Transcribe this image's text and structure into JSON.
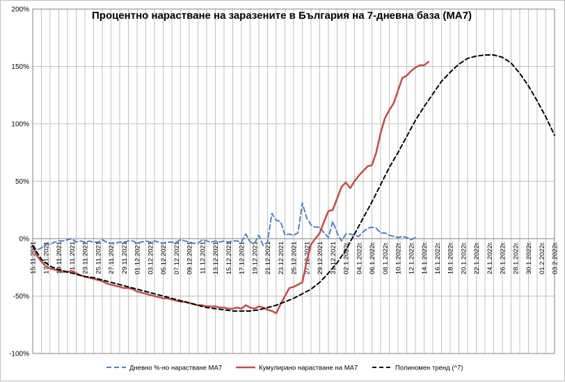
{
  "chart_data": {
    "type": "line",
    "title": "Процентно нарастване  на заразените в България на 7-дневна база (МА7)",
    "xlabel": "",
    "ylabel": "",
    "ylim": [
      -100,
      200
    ],
    "y_ticks": [
      "-100%",
      "-50%",
      "0%",
      "50%",
      "100%",
      "150%",
      "200%"
    ],
    "y_tick_values": [
      -100,
      -50,
      0,
      50,
      100,
      150,
      200
    ],
    "grid": true,
    "legend_position": "bottom",
    "x_tick_labels": [
      "15.11.2021",
      "17.11.2021",
      "19.11.2021",
      "21.11.2021",
      "23.11.2021",
      "25.11.2021",
      "27.11.2021",
      "29.11.2021",
      "01.12.2021",
      "03.12.2021",
      "05.12.2021",
      "07.12.2021",
      "09.12.2021",
      "11.12.2021",
      "13.12.2021",
      "15.12.2021",
      "17.12.2021",
      "19.12.2021",
      "21.12.2021",
      "23.12.2021",
      "25.12.2021",
      "27.12.2021",
      "29.12.2021",
      "31.12.2021",
      "02.1.2022г.",
      "04.1.2022г.",
      "06.1.2022г.",
      "08.1.2022г.",
      "10.1.2022г.",
      "12.1.2022г.",
      "14.1.2022г.",
      "16.1.2022г.",
      "18.1.2022г.",
      "20.1.2022г.",
      "22.1.2022г.",
      "24.1.2022г.",
      "26.1.2022г.",
      "28.1.2022г.",
      "30.1.2022г.",
      "01.2.2022г.",
      "03.2.2022г."
    ],
    "series": [
      {
        "name": "Дневно %-но нарастване МА7",
        "color": "#4f81bd",
        "style": "dashed",
        "values": [
          -6,
          -10,
          -8,
          -5,
          -5,
          -3,
          -2,
          -2,
          -1,
          0,
          -3,
          -2,
          -3,
          -2,
          -3,
          -3,
          -1,
          -3,
          -4,
          -4,
          -3,
          -3,
          -2,
          -2,
          -4,
          -3,
          -2,
          -3,
          -2,
          -3,
          -4,
          -3,
          -3,
          -3,
          -1,
          -2,
          -3,
          -4,
          -4,
          -1,
          -2,
          -3,
          -2,
          -3,
          -2,
          -3,
          -2,
          -2,
          -3,
          4,
          -3,
          -4,
          3,
          -6,
          -3,
          22,
          16,
          15,
          3,
          4,
          3,
          5,
          31,
          18,
          12,
          10,
          10,
          5,
          1,
          15,
          5,
          -2,
          4,
          4,
          3,
          2,
          6,
          9,
          10,
          9,
          5,
          5,
          3,
          2,
          1,
          2,
          1,
          -1,
          1
        ]
      },
      {
        "name": "Кумулирано нарастване на МА7",
        "color": "#c0504d",
        "style": "solid",
        "values": [
          -7,
          -15,
          -20,
          -24,
          -26,
          -27,
          -28,
          -29,
          -29,
          -28,
          -30,
          -32,
          -33,
          -34,
          -35,
          -36,
          -37,
          -39,
          -40,
          -41,
          -42,
          -43,
          -43,
          -44,
          -46,
          -47,
          -48,
          -49,
          -50,
          -51,
          -52,
          -52,
          -53,
          -54,
          -55,
          -55,
          -56,
          -57,
          -58,
          -58,
          -59,
          -59,
          -59,
          -60,
          -60,
          -61,
          -61,
          -60,
          -61,
          -58,
          -60,
          -61,
          -59,
          -60,
          -62,
          -63,
          -65,
          -57,
          -50,
          -43,
          -42,
          -40,
          -38,
          -20,
          -5,
          0,
          5,
          15,
          24,
          25,
          35,
          45,
          49,
          44,
          50,
          55,
          59,
          63,
          64,
          75,
          92,
          105,
          112,
          118,
          129,
          140,
          142,
          146,
          149,
          151,
          151,
          154
        ]
      },
      {
        "name": "Полиномен тренд (^7)",
        "color": "#000000",
        "style": "dashed",
        "x": [
          0,
          2,
          4,
          6,
          8,
          10,
          12,
          14,
          16,
          18,
          20,
          22,
          24,
          26,
          28,
          30,
          32,
          34,
          36,
          38,
          40,
          42,
          44,
          46,
          48,
          50,
          52,
          54,
          56,
          58,
          60,
          62,
          64,
          66,
          68,
          70,
          72,
          74,
          76,
          78,
          80,
          82,
          84,
          86,
          88,
          90,
          92,
          94,
          96,
          98,
          100,
          102,
          104,
          106,
          108,
          110,
          112,
          114,
          116,
          118,
          120
        ],
        "values": [
          -6,
          -18,
          -24,
          -27,
          -29,
          -31,
          -33,
          -34,
          -36,
          -38,
          -40,
          -42,
          -44,
          -46,
          -48,
          -50,
          -52,
          -54,
          -56,
          -58,
          -60,
          -61,
          -62,
          -63,
          -63,
          -63,
          -62,
          -60,
          -58,
          -55,
          -52,
          -48,
          -44,
          -38,
          -30,
          -21,
          -10,
          4,
          18,
          32,
          47,
          62,
          75,
          89,
          103,
          115,
          126,
          137,
          145,
          152,
          157,
          159,
          160,
          160,
          158,
          153,
          144,
          133,
          120,
          106,
          90
        ]
      }
    ]
  }
}
